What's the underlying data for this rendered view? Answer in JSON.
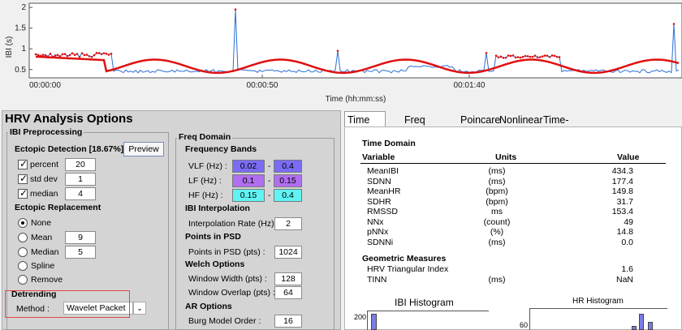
{
  "plot": {
    "y_axis_label": "IBI (s)",
    "y_ticks": [
      "2",
      "1.5",
      "1",
      "0.5"
    ],
    "x_ticks": [
      "00:00:00",
      "00:00:50",
      "00:01:40"
    ],
    "x_axis_label": "Time (hh:mm:ss)",
    "colors": {
      "ibi_line": "#2a6fd4",
      "trend_line": "#e01010",
      "ectopic_points": "#e01010"
    }
  },
  "options": {
    "title": "HRV Analysis Options",
    "ibi_preprocessing": {
      "title": "IBI Preprocessing",
      "ectopic_detection_label": "Ectopic Detection [18.67%]",
      "preview_button": "Preview",
      "checks": [
        {
          "label": "percent",
          "value": "20",
          "checked": true
        },
        {
          "label": "std dev",
          "value": "1",
          "checked": true
        },
        {
          "label": "median",
          "value": "4",
          "checked": true
        }
      ],
      "ectopic_replacement_label": "Ectopic Replacement",
      "replacement_options": [
        {
          "label": "None",
          "selected": true,
          "value": ""
        },
        {
          "label": "Mean",
          "selected": false,
          "value": "9"
        },
        {
          "label": "Median",
          "selected": false,
          "value": "5"
        },
        {
          "label": "Spline",
          "selected": false,
          "value": ""
        },
        {
          "label": "Remove",
          "selected": false,
          "value": ""
        }
      ],
      "detrending_label": "Detrending",
      "method_label": "Method :",
      "method_value": "Wavelet Packet"
    },
    "freq_domain": {
      "title": "Freq Domain",
      "frequency_bands_label": "Frequency Bands",
      "bands": [
        {
          "label": "VLF (Hz) :",
          "low": "0.02",
          "high": "0.4",
          "color": "#7b6cf6"
        },
        {
          "label": "LF (Hz) :",
          "low": "0.1",
          "high": "0.15",
          "color": "#b06ef0"
        },
        {
          "label": "HF (Hz) :",
          "low": "0.15",
          "high": "0.4",
          "color": "#5ff3f3"
        }
      ],
      "band_dash": "-",
      "ibi_interpolation_label": "IBI Interpolation",
      "interp_rate_label": "Interpolation Rate (Hz) :",
      "interp_rate_value": "2",
      "points_in_psd_label": "Points in PSD",
      "points_in_psd_field_label": "Points in PSD (pts) :",
      "points_in_psd_value": "1024",
      "welch_options_label": "Welch Options",
      "window_width_label": "Window Width (pts) :",
      "window_width_value": "128",
      "window_overlap_label": "Window Overlap (pts) :",
      "window_overlap_value": "64",
      "ar_options_label": "AR Options",
      "burg_order_label": "Burg Model Order :",
      "burg_order_value": "16"
    }
  },
  "tabs": [
    "Time Domain",
    "Freq Domain",
    "Poincare",
    "Nonlinear",
    "Time-Freq"
  ],
  "time_domain": {
    "section_title": "Time Domain",
    "headers": {
      "variable": "Variable",
      "units": "Units",
      "value": "Value"
    },
    "rows": [
      {
        "variable": "MeanIBI",
        "units": "(ms)",
        "value": "434.3"
      },
      {
        "variable": "SDNN",
        "units": "(ms)",
        "value": "177.4"
      },
      {
        "variable": "MeanHR",
        "units": "(bpm)",
        "value": "149.8"
      },
      {
        "variable": "SDHR",
        "units": "(bpm)",
        "value": "31.7"
      },
      {
        "variable": "RMSSD",
        "units": "ms",
        "value": "153.4"
      },
      {
        "variable": "NNx",
        "units": "(count)",
        "value": "49"
      },
      {
        "variable": "pNNx",
        "units": "(%)",
        "value": "14.8"
      },
      {
        "variable": "SDNNi",
        "units": "(ms)",
        "value": "0.0"
      }
    ],
    "geometric_title": "Geometric Measures",
    "geometric_rows": [
      {
        "variable": "HRV Triangular Index",
        "units": "",
        "value": "1.6"
      },
      {
        "variable": "TINN",
        "units": "(ms)",
        "value": "NaN"
      }
    ],
    "ibi_histogram_title": "IBI Histogram",
    "ibi_histogram_tick": "200",
    "hr_histogram_title": "HR Histogram",
    "hr_histogram_tick": "60"
  }
}
